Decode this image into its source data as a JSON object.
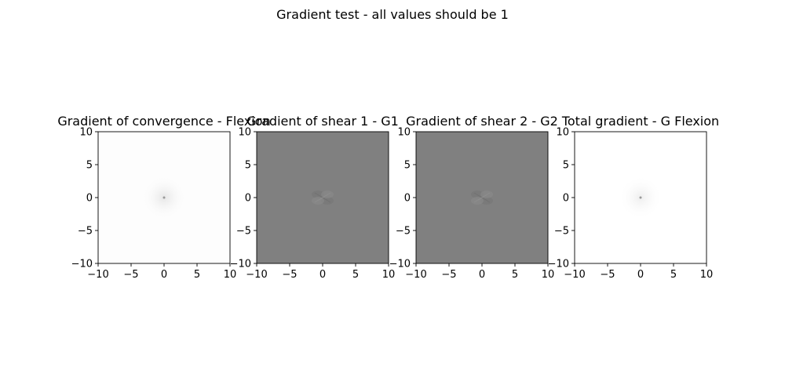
{
  "figure": {
    "suptitle": "Gradient test - all values should be 1"
  },
  "chart_data": [
    {
      "type": "heatmap",
      "title": "Gradient of convergence - Flexion",
      "xlabel": "",
      "ylabel": "",
      "xlim": [
        -10,
        10
      ],
      "ylim": [
        -10,
        10
      ],
      "xticks": [
        -10,
        -5,
        0,
        5,
        10
      ],
      "yticks": [
        -10,
        -5,
        0,
        5,
        10
      ],
      "tick_labels": [
        "−10",
        "−5",
        "0",
        "5",
        "10"
      ],
      "colormap": "gray",
      "background_color": "#fdfdfd",
      "center_feature": "faint point at origin with light halo",
      "grid": false
    },
    {
      "type": "heatmap",
      "title": "Gradient of shear 1 - G1",
      "xlabel": "",
      "ylabel": "",
      "xlim": [
        -10,
        10
      ],
      "ylim": [
        -10,
        10
      ],
      "xticks": [
        -10,
        -5,
        0,
        5,
        10
      ],
      "yticks": [
        -10,
        -5,
        0,
        5,
        10
      ],
      "tick_labels": [
        "−10",
        "−5",
        "0",
        "5",
        "10"
      ],
      "colormap": "gray",
      "background_color": "#808080",
      "center_feature": "four-lobe pattern at origin",
      "grid": false
    },
    {
      "type": "heatmap",
      "title": "Gradient of shear 2 - G2",
      "xlabel": "",
      "ylabel": "",
      "xlim": [
        -10,
        10
      ],
      "ylim": [
        -10,
        10
      ],
      "xticks": [
        -10,
        -5,
        0,
        5,
        10
      ],
      "yticks": [
        -10,
        -5,
        0,
        5,
        10
      ],
      "tick_labels": [
        "−10",
        "−5",
        "0",
        "5",
        "10"
      ],
      "colormap": "gray",
      "background_color": "#808080",
      "center_feature": "four-lobe pattern at origin",
      "grid": false
    },
    {
      "type": "heatmap",
      "title": "Total gradient - G Flexion",
      "xlabel": "",
      "ylabel": "",
      "xlim": [
        -10,
        10
      ],
      "ylim": [
        -10,
        10
      ],
      "xticks": [
        -10,
        -5,
        0,
        5,
        10
      ],
      "yticks": [
        -10,
        -5,
        0,
        5,
        10
      ],
      "tick_labels": [
        "−10",
        "−5",
        "0",
        "5",
        "10"
      ],
      "colormap": "gray",
      "background_color": "#ffffff",
      "center_feature": "faint point at origin with light halo",
      "grid": false
    }
  ]
}
